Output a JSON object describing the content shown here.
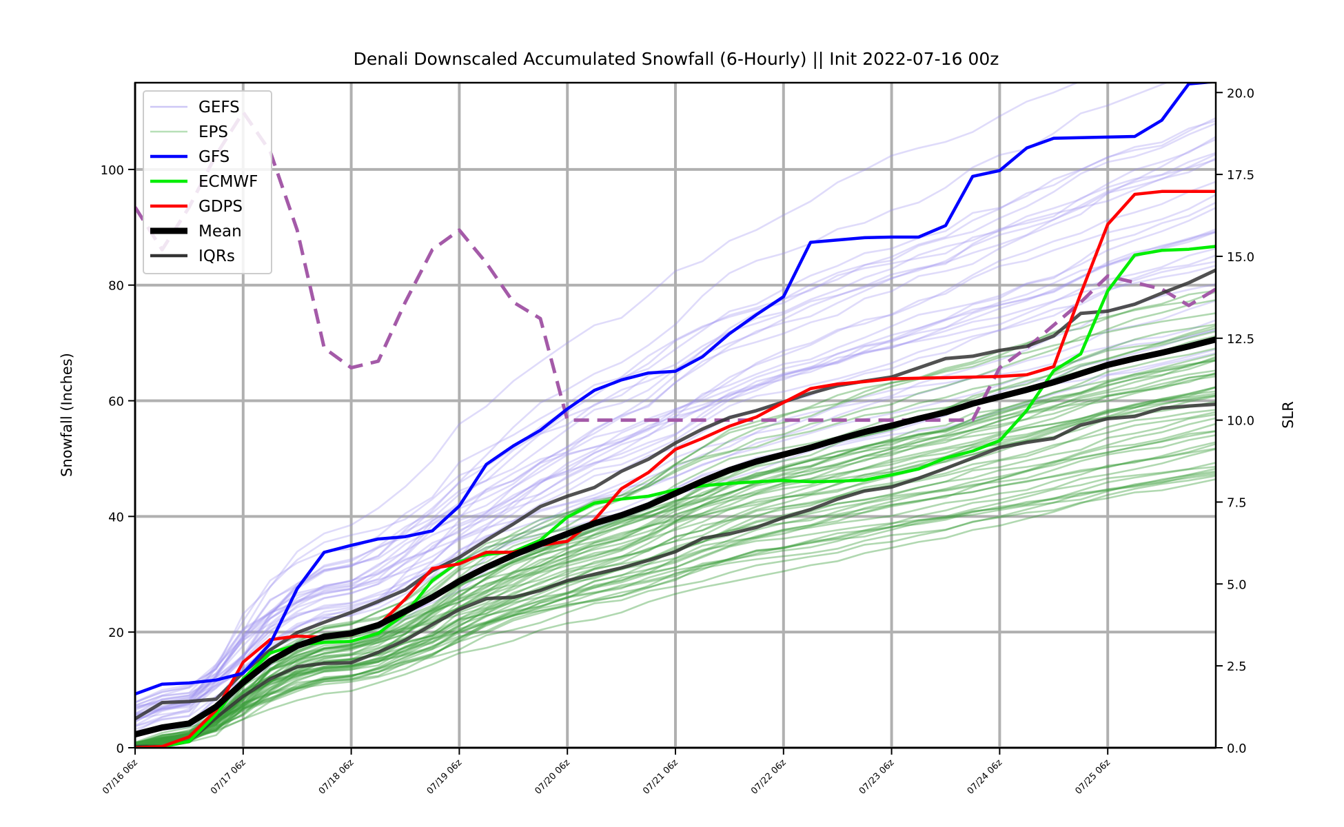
{
  "chart_data": {
    "type": "line",
    "title": "Denali Downscaled Accumulated Snowfall (6-Hourly) || Init 2022-07-16 00z",
    "ylabel": "Snowfall (Inches)",
    "y2label": "SLR",
    "ylim": [
      0,
      115
    ],
    "y2lim": [
      0,
      20.3
    ],
    "yticks": [
      0,
      20,
      40,
      60,
      80,
      100
    ],
    "y2ticks": [
      "0.0",
      "2.5",
      "5.0",
      "7.5",
      "10.0",
      "12.5",
      "15.0",
      "17.5",
      "20.0"
    ],
    "x_hours": [
      6,
      12,
      18,
      24,
      30,
      36,
      42,
      48,
      54,
      60,
      66,
      72,
      78,
      84,
      90,
      96,
      102,
      108,
      114,
      120,
      126,
      132,
      138,
      144,
      150,
      156,
      162,
      168,
      174,
      180,
      186,
      192,
      198,
      204,
      210,
      216,
      222,
      228,
      234,
      240,
      246
    ],
    "xticks": [
      "07/16 06z",
      "07/17 06z",
      "07/18 06z",
      "07/19 06z",
      "07/20 06z",
      "07/21 06z",
      "07/22 06z",
      "07/23 06z",
      "07/24 06z",
      "07/25 06z"
    ],
    "grid": true,
    "legend_position": "top-left",
    "legend": [
      {
        "label": "GEFS",
        "color": "#9b8fee",
        "style": "thin"
      },
      {
        "label": "EPS",
        "color": "#6fbf6f",
        "style": "thin"
      },
      {
        "label": "GFS",
        "color": "#0000ff",
        "style": "solid"
      },
      {
        "label": "ECMWF",
        "color": "#00ee00",
        "style": "solid"
      },
      {
        "label": "GDPS",
        "color": "#ff0000",
        "style": "solid"
      },
      {
        "label": "Mean",
        "color": "#000000",
        "style": "thick"
      },
      {
        "label": "IQRs",
        "color": "#333333",
        "style": "solid"
      }
    ],
    "series": [
      {
        "name": "GFS",
        "color": "#0000ff",
        "values": [
          9.3,
          11.0,
          11.2,
          11.7,
          12.9,
          18.0,
          27.5,
          33.8,
          35.0,
          36.1,
          36.5,
          37.5,
          41.8,
          49.0,
          52.2,
          54.9,
          58.6,
          61.8,
          63.6,
          64.8,
          65.1,
          67.6,
          71.6,
          74.9,
          78.0,
          87.4,
          87.8,
          88.2,
          88.3,
          88.3,
          90.3,
          98.8,
          99.8,
          103.7,
          105.4,
          105.5,
          105.6,
          105.7,
          108.5,
          114.8,
          115.2
        ]
      },
      {
        "name": "ECMWF",
        "color": "#00ee00",
        "values": [
          0.0,
          0.2,
          1.1,
          5.8,
          11.9,
          16.4,
          17.8,
          18.2,
          18.4,
          19.8,
          23.2,
          28.9,
          32.2,
          33.4,
          33.9,
          35.9,
          39.9,
          42.3,
          43.0,
          43.5,
          44.6,
          45.3,
          45.7,
          46.0,
          46.2,
          46.0,
          46.1,
          46.3,
          47.2,
          48.2,
          50.1,
          51.3,
          53.1,
          58.3,
          65.2,
          68.1,
          79.0,
          85.2,
          86.0,
          86.2,
          86.7
        ]
      },
      {
        "name": "GDPS",
        "color": "#ff0000",
        "values": [
          0.0,
          0.2,
          1.9,
          6.5,
          14.8,
          18.7,
          19.3,
          19.1,
          19.5,
          21.1,
          25.7,
          31.0,
          31.8,
          33.8,
          33.8,
          35.0,
          35.7,
          39.4,
          44.8,
          47.6,
          51.6,
          53.5,
          55.6,
          57.2,
          59.7,
          62.1,
          62.9,
          63.3,
          63.8,
          63.9,
          64.0,
          64.1,
          64.2,
          64.5,
          65.9,
          78.5,
          90.5,
          95.7,
          96.2,
          96.2,
          96.2
        ]
      },
      {
        "name": "Mean",
        "color": "#000000",
        "values": [
          2.3,
          3.5,
          4.2,
          7.1,
          11.3,
          15.0,
          17.6,
          19.2,
          19.8,
          21.2,
          23.6,
          26.0,
          28.8,
          31.2,
          33.3,
          35.2,
          37.0,
          38.8,
          40.2,
          41.9,
          44.0,
          46.1,
          48.0,
          49.5,
          50.7,
          51.9,
          53.3,
          54.6,
          55.7,
          56.9,
          58.0,
          59.5,
          60.7,
          61.9,
          63.2,
          64.7,
          66.2,
          67.3,
          68.3,
          69.4,
          70.6
        ]
      },
      {
        "name": "IQR Upper",
        "color": "#333333",
        "values": [
          5.0,
          7.8,
          8.0,
          8.4,
          13.0,
          16.9,
          19.9,
          21.7,
          23.4,
          25.3,
          27.3,
          30.6,
          32.9,
          35.9,
          38.7,
          41.7,
          43.5,
          45.0,
          47.8,
          49.9,
          52.7,
          55.1,
          57.1,
          58.3,
          59.8,
          61.3,
          62.6,
          63.4,
          64.1,
          65.7,
          67.3,
          67.7,
          68.7,
          69.4,
          71.2,
          75.1,
          75.5,
          76.7,
          78.6,
          80.4,
          82.6
        ]
      },
      {
        "name": "IQR Lower",
        "color": "#333333",
        "values": [
          0.2,
          0.2,
          1.1,
          5.2,
          8.9,
          11.9,
          14.0,
          14.6,
          14.7,
          16.5,
          18.6,
          21.3,
          23.9,
          25.8,
          26.0,
          27.2,
          28.9,
          30.0,
          31.1,
          32.4,
          33.9,
          36.2,
          37.0,
          38.1,
          39.8,
          41.2,
          43.0,
          44.4,
          45.1,
          46.6,
          48.3,
          50.1,
          51.9,
          52.8,
          53.5,
          55.8,
          56.9,
          57.3,
          58.7,
          59.1,
          59.4
        ]
      },
      {
        "name": "SLR",
        "color": "#a45aa8",
        "axis": "y2",
        "values": [
          16.5,
          15.2,
          16.5,
          18.1,
          19.4,
          18.2,
          15.8,
          12.2,
          11.6,
          11.8,
          13.6,
          15.2,
          15.8,
          14.8,
          13.6,
          13.1,
          10.0,
          10.0,
          10.0,
          10.0,
          10.0,
          10.0,
          10.0,
          10.0,
          10.0,
          10.0,
          10.0,
          10.0,
          10.0,
          10.0,
          10.0,
          10.0,
          11.6,
          12.2,
          12.9,
          13.6,
          14.4,
          14.2,
          14.0,
          13.5,
          14.0
        ]
      }
    ],
    "ensemble_members": [
      {
        "group": "GEFS",
        "color": "#9b8fee",
        "count": 30
      },
      {
        "group": "EPS",
        "color": "#3a9e3a",
        "count": 50
      }
    ]
  }
}
